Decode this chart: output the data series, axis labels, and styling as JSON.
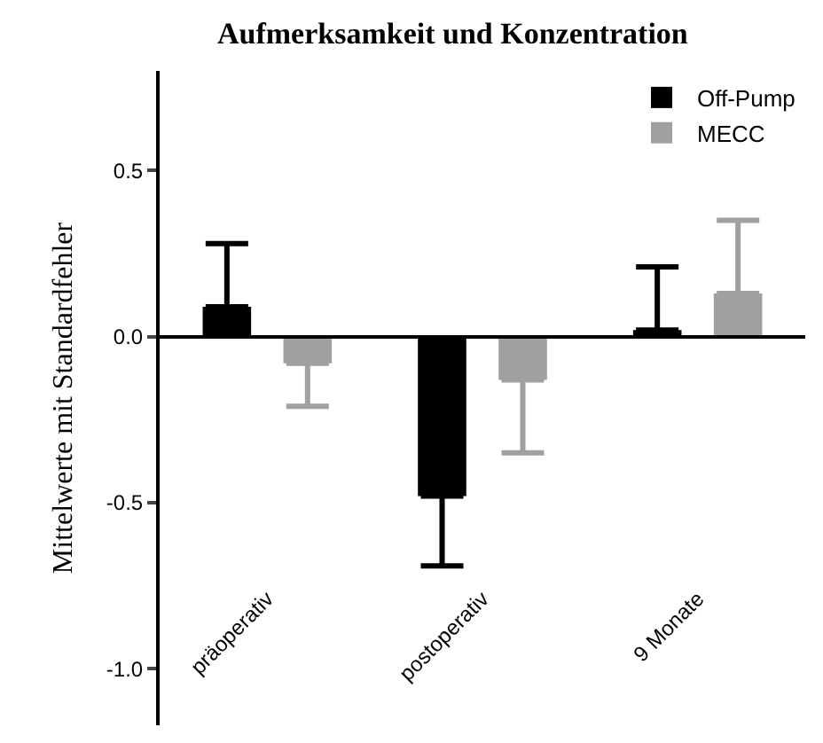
{
  "chart_data": {
    "type": "bar",
    "title": "Aufmerksamkeit und Konzentration",
    "ylabel": "Mittelwerte mit Standardfehler",
    "categories": [
      "präoperativ",
      "postoperativ",
      "9 Monate"
    ],
    "series": [
      {
        "name": "Off-Pump",
        "color": "#000000",
        "values": [
          0.09,
          -0.48,
          0.02
        ],
        "errors": [
          [
            0.09,
            0.28
          ],
          [
            -0.69,
            -0.48
          ],
          [
            0.02,
            0.21
          ]
        ]
      },
      {
        "name": "MECC",
        "color": "#a0a0a0",
        "values": [
          -0.08,
          -0.13,
          0.13
        ],
        "errors": [
          [
            -0.21,
            -0.08
          ],
          [
            -0.35,
            -0.13
          ],
          [
            0.13,
            0.35
          ]
        ]
      }
    ],
    "ylim": [
      -1.17,
      0.8
    ],
    "yticks": [
      {
        "value": 0.5,
        "label": "0.5"
      },
      {
        "value": 0,
        "label": "0.0"
      },
      {
        "value": -0.5,
        "label": "-0.5"
      },
      {
        "value": -1,
        "label": "-1.0"
      }
    ],
    "legend": "top right"
  }
}
